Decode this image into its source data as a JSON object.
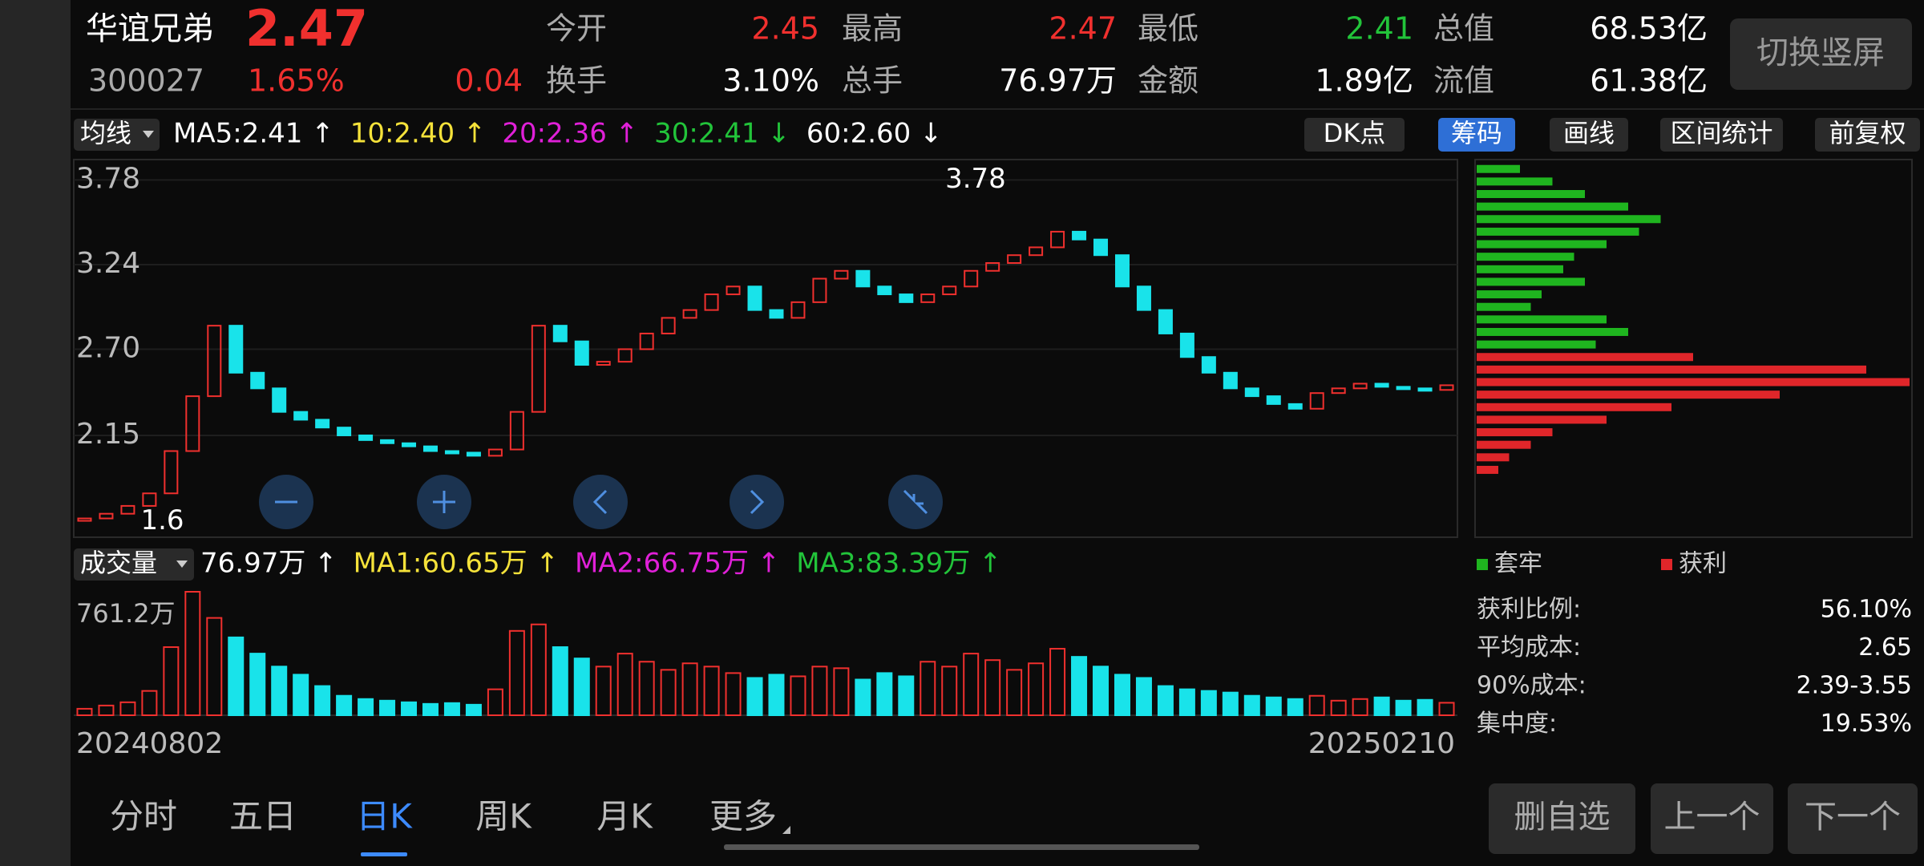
{
  "header": {
    "name": "华谊兄弟",
    "price": "2.47",
    "code": "300027",
    "change_pct": "1.65%",
    "change": "0.04",
    "stats": [
      {
        "label": "今开",
        "value": "2.45",
        "color": "#f0302e"
      },
      {
        "label": "最高",
        "value": "2.47",
        "color": "#f0302e"
      },
      {
        "label": "最低",
        "value": "2.41",
        "color": "#22c43a"
      },
      {
        "label": "总值",
        "value": "68.53亿",
        "color": "#ffffff"
      },
      {
        "label": "换手",
        "value": "3.10%",
        "color": "#ffffff"
      },
      {
        "label": "总手",
        "value": "76.97万",
        "color": "#ffffff"
      },
      {
        "label": "金额",
        "value": "1.89亿",
        "color": "#ffffff"
      },
      {
        "label": "流值",
        "value": "61.38亿",
        "color": "#ffffff"
      }
    ],
    "button": "切换竖屏"
  },
  "toolbar": {
    "ma_button": "均线",
    "buttons": [
      "DK点",
      "筹码",
      "画线",
      "区间统计",
      "前复权"
    ]
  },
  "chart_data": [
    {
      "type": "candlestick",
      "color_up": "#f0302e",
      "color_down": "#19e3ea",
      "legend": [
        {
          "text": "MA5:2.41 ↑",
          "color": "#ffffff"
        },
        {
          "text": "10:2.40 ↑",
          "color": "#f5e23a"
        },
        {
          "text": "20:2.36 ↑",
          "color": "#e020d8"
        },
        {
          "text": "30:2.41 ↓",
          "color": "#22c43a"
        },
        {
          "text": "60:2.60 ↓",
          "color": "#ffffff"
        }
      ],
      "values": [
        1.62,
        1.65,
        1.7,
        1.78,
        2.05,
        2.4,
        2.85,
        2.55,
        2.45,
        2.3,
        2.25,
        2.2,
        2.15,
        2.12,
        2.1,
        2.08,
        2.05,
        2.04,
        2.02,
        2.06,
        2.3,
        2.85,
        2.75,
        2.6,
        2.62,
        2.7,
        2.8,
        2.9,
        2.95,
        3.05,
        3.1,
        2.95,
        2.9,
        3.0,
        3.15,
        3.2,
        3.1,
        3.05,
        3.0,
        3.05,
        3.1,
        3.2,
        3.25,
        3.3,
        3.35,
        3.45,
        3.4,
        3.3,
        3.1,
        2.95,
        2.8,
        2.65,
        2.55,
        2.45,
        2.4,
        2.35,
        2.32,
        2.42,
        2.45,
        2.48,
        2.46,
        2.45,
        2.44,
        2.47
      ],
      "ylim": [
        1.5,
        3.91
      ],
      "yticks": [
        3.78,
        3.24,
        {
          "value": 2.7,
          "label": "2.70"
        },
        2.15
      ],
      "high": {
        "value": 3.78,
        "label": "3.78"
      },
      "low": {
        "value": 1.6,
        "label": "1.6"
      }
    },
    {
      "type": "bar",
      "name": "成交量",
      "legend": [
        {
          "text": "76.97万 ↑",
          "color": "#ffffff"
        },
        {
          "text": "MA1:60.65万 ↑",
          "color": "#f5e23a"
        },
        {
          "text": "MA2:66.75万 ↑",
          "color": "#e020d8"
        },
        {
          "text": "MA3:83.39万 ↑",
          "color": "#22c43a"
        }
      ],
      "values": [
        40,
        60,
        80,
        150,
        420,
        761.2,
        600,
        480,
        380,
        300,
        250,
        180,
        120,
        100,
        90,
        80,
        70,
        75,
        65,
        160,
        520,
        560,
        420,
        350,
        300,
        380,
        330,
        280,
        320,
        300,
        260,
        230,
        250,
        240,
        300,
        290,
        220,
        260,
        240,
        330,
        300,
        380,
        340,
        280,
        320,
        410,
        360,
        300,
        250,
        230,
        180,
        160,
        150,
        140,
        120,
        110,
        100,
        120,
        90,
        100,
        110,
        90,
        95,
        76.97
      ],
      "ylim": [
        0,
        761.2
      ],
      "yticks": [
        {
          "value": 761.2,
          "label": "761.2万"
        }
      ],
      "x_labels": [
        "20240802",
        "20250210"
      ]
    },
    {
      "type": "barh",
      "xlim": [
        0,
        200
      ],
      "series": [
        {
          "name": "套牢",
          "color": "#1fb51f",
          "prices": [
            3.85,
            3.77,
            3.69,
            3.61,
            3.53,
            3.45,
            3.37,
            3.29,
            3.21,
            3.13,
            3.05,
            2.97,
            2.89,
            2.81,
            2.73
          ],
          "values": [
            20,
            35,
            50,
            70,
            85,
            75,
            60,
            45,
            40,
            50,
            30,
            25,
            60,
            70,
            55
          ]
        },
        {
          "name": "获利",
          "color": "#e0262a",
          "prices": [
            2.65,
            2.57,
            2.49,
            2.41,
            2.33,
            2.25,
            2.17,
            2.09,
            2.01,
            1.93
          ],
          "values": [
            100,
            180,
            200,
            140,
            90,
            60,
            35,
            25,
            15,
            10
          ]
        }
      ]
    }
  ],
  "chip_stats": [
    [
      "获利比例:",
      "56.10%"
    ],
    [
      "平均成本:",
      "2.65"
    ],
    [
      "90%成本:",
      "2.39-3.55"
    ],
    [
      "集中度:",
      "19.53%"
    ]
  ],
  "tabs": [
    "分时",
    "五日",
    "日K",
    "周K",
    "月K",
    "更多"
  ],
  "nav_buttons": [
    "删自选",
    "上一个",
    "下一个"
  ]
}
